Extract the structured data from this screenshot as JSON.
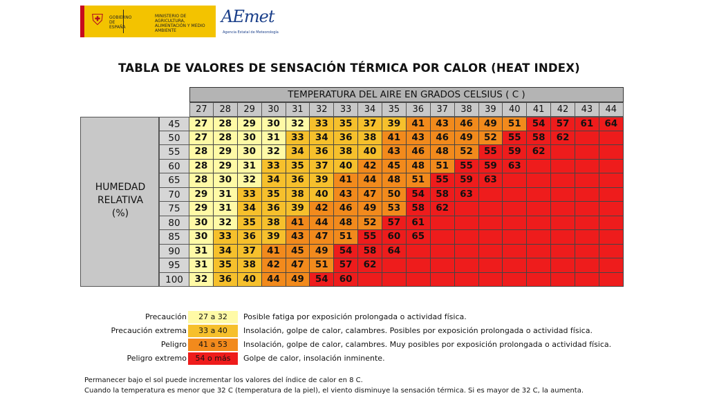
{
  "header": {
    "gov_text1": "GOBIERNO DE ESPAÑA",
    "gov_text2": "MINISTERIO DE AGRICULTURA, ALIMENTACIÓN Y MEDIO AMBIENTE",
    "aemet_name": "AEmet",
    "aemet_sub": "Agencia Estatal de Meteorología"
  },
  "title": "TABLA DE VALORES DE SENSACIÓN TÉRMICA POR CALOR (HEAT INDEX)",
  "table": {
    "temp_header": "TEMPERATURA DEL AIRE EN GRADOS CELSIUS ( C )",
    "humidity_label": [
      "HUMEDAD",
      "RELATIVA",
      "(%)"
    ],
    "temperatures": [
      "27",
      "28",
      "29",
      "30",
      "31",
      "32",
      "33",
      "34",
      "35",
      "36",
      "37",
      "38",
      "39",
      "40",
      "41",
      "42",
      "43",
      "44"
    ],
    "humidities": [
      "45",
      "50",
      "55",
      "60",
      "65",
      "70",
      "75",
      "80",
      "85",
      "90",
      "95",
      "100"
    ],
    "values": [
      [
        "27",
        "28",
        "29",
        "30",
        "32",
        "33",
        "35",
        "37",
        "39",
        "41",
        "43",
        "46",
        "49",
        "51",
        "54",
        "57",
        "61",
        "64"
      ],
      [
        "27",
        "28",
        "30",
        "31",
        "33",
        "34",
        "36",
        "38",
        "41",
        "43",
        "46",
        "49",
        "52",
        "55",
        "58",
        "62",
        "",
        ""
      ],
      [
        "28",
        "29",
        "30",
        "32",
        "34",
        "36",
        "38",
        "40",
        "43",
        "46",
        "48",
        "52",
        "55",
        "59",
        "62",
        "",
        "",
        ""
      ],
      [
        "28",
        "29",
        "31",
        "33",
        "35",
        "37",
        "40",
        "42",
        "45",
        "48",
        "51",
        "55",
        "59",
        "63",
        "",
        "",
        "",
        ""
      ],
      [
        "28",
        "30",
        "32",
        "34",
        "36",
        "39",
        "41",
        "44",
        "48",
        "51",
        "55",
        "59",
        "63",
        "",
        "",
        "",
        "",
        ""
      ],
      [
        "29",
        "31",
        "33",
        "35",
        "38",
        "40",
        "43",
        "47",
        "50",
        "54",
        "58",
        "63",
        "",
        "",
        "",
        "",
        "",
        ""
      ],
      [
        "29",
        "31",
        "34",
        "36",
        "39",
        "42",
        "46",
        "49",
        "53",
        "58",
        "62",
        "",
        "",
        "",
        "",
        "",
        "",
        ""
      ],
      [
        "30",
        "32",
        "35",
        "38",
        "41",
        "44",
        "48",
        "52",
        "57",
        "61",
        "",
        "",
        "",
        "",
        "",
        "",
        "",
        ""
      ],
      [
        "30",
        "33",
        "36",
        "39",
        "43",
        "47",
        "51",
        "55",
        "60",
        "65",
        "",
        "",
        "",
        "",
        "",
        "",
        "",
        ""
      ],
      [
        "31",
        "34",
        "37",
        "41",
        "45",
        "49",
        "54",
        "58",
        "64",
        "",
        "",
        "",
        "",
        "",
        "",
        "",
        "",
        ""
      ],
      [
        "31",
        "35",
        "38",
        "42",
        "47",
        "51",
        "57",
        "62",
        "",
        "",
        "",
        "",
        "",
        "",
        "",
        "",
        "",
        ""
      ],
      [
        "32",
        "36",
        "40",
        "44",
        "49",
        "54",
        "60",
        "",
        "",
        "",
        "",
        "",
        "",
        "",
        "",
        "",
        "",
        ""
      ]
    ]
  },
  "legend": [
    {
      "label": "Precaución",
      "range": "27 a 32",
      "desc": "Posible fatiga por exposición prolongada o actividad física.",
      "color": "#fffaa6"
    },
    {
      "label": "Precaución extrema",
      "range": "33 a 40",
      "desc": "Insolación, golpe de calor, calambres. Posibles por exposición prolongada o actividad física.",
      "color": "#f6c02c"
    },
    {
      "label": "Peligro",
      "range": "41 a 53",
      "desc": "Insolación, golpe de calor, calambres. Muy posibles por exposición prolongada o actividad física.",
      "color": "#f28a1c"
    },
    {
      "label": "Peligro extremo",
      "range": "54 o más",
      "desc": "Golpe de calor, insolación inminente.",
      "color": "#ee1c1c"
    }
  ],
  "notes": [
    "Permanecer bajo el sol puede incrementar los valores del índice de calor en 8 C.",
    "Cuando la temperatura es menor que 32 C (temperatura de la piel), el viento disminuye la sensación térmica. Si es mayor de 32 C, la aumenta."
  ]
}
